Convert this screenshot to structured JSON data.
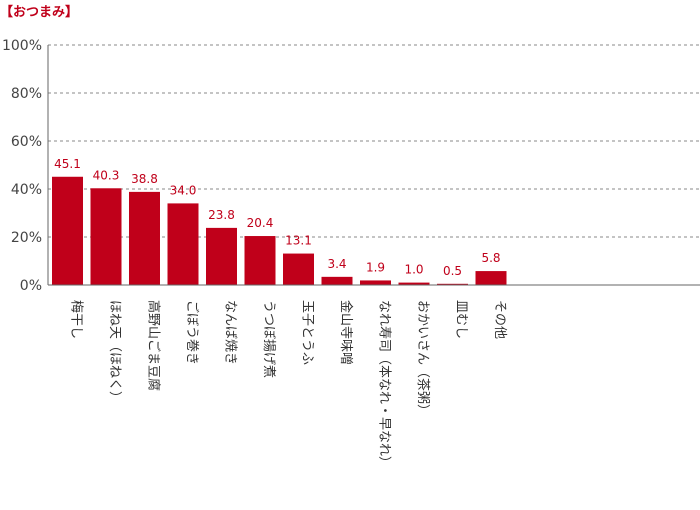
{
  "chart_data": {
    "type": "bar",
    "title": "【おつまみ】",
    "categories": [
      "梅干し",
      "ほね天（ほねく）",
      "高野山ごま豆腐",
      "ごぼう巻き",
      "なんば焼き",
      "うつぼ揚げ煮",
      "玉子とうふ",
      "金山寺味噌",
      "なれ寿司（本なれ・早なれ）",
      "おかいさん（茶粥）",
      "皿むし",
      "その他"
    ],
    "values": [
      45.1,
      40.3,
      38.8,
      34.0,
      23.8,
      20.4,
      13.1,
      3.4,
      1.9,
      1.0,
      0.5,
      5.8
    ],
    "value_labels": [
      "45.1",
      "40.3",
      "38.8",
      "34.0",
      "23.8",
      "20.4",
      "13.1",
      "3.4",
      "1.9",
      "1.0",
      "0.5",
      "5.8"
    ],
    "ylim": [
      0,
      100
    ],
    "yticks": [
      "0%",
      "20%",
      "40%",
      "60%",
      "80%",
      "100%"
    ],
    "bar_color": "#c0001a",
    "grid": true
  }
}
